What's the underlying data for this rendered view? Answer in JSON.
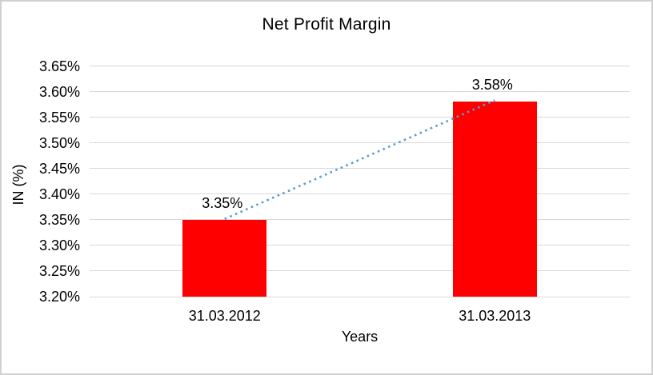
{
  "chart_data": {
    "type": "bar",
    "title": "Net Profit Margin",
    "xlabel": "Years",
    "ylabel": "IN (%)",
    "categories": [
      "31.03.2012",
      "31.03.2013"
    ],
    "values": [
      3.35,
      3.58
    ],
    "value_labels": [
      "3.35%",
      "3.58%"
    ],
    "ylim": [
      3.2,
      3.65
    ],
    "ytick_step": 0.05,
    "ytick_labels": [
      "3.65%",
      "3.60%",
      "3.55%",
      "3.50%",
      "3.45%",
      "3.40%",
      "3.35%",
      "3.30%",
      "3.25%",
      "3.20%"
    ],
    "grid": true,
    "legend": "none",
    "colors": {
      "bar": "#ff0000",
      "trendline": "#5b9bd5",
      "gridline": "#d9d9d9",
      "text": "#000000",
      "frame_border": "#d1d1d1"
    },
    "trendline": {
      "style": "dotted",
      "from_label": "3.35%",
      "to_label": "3.58%"
    }
  }
}
